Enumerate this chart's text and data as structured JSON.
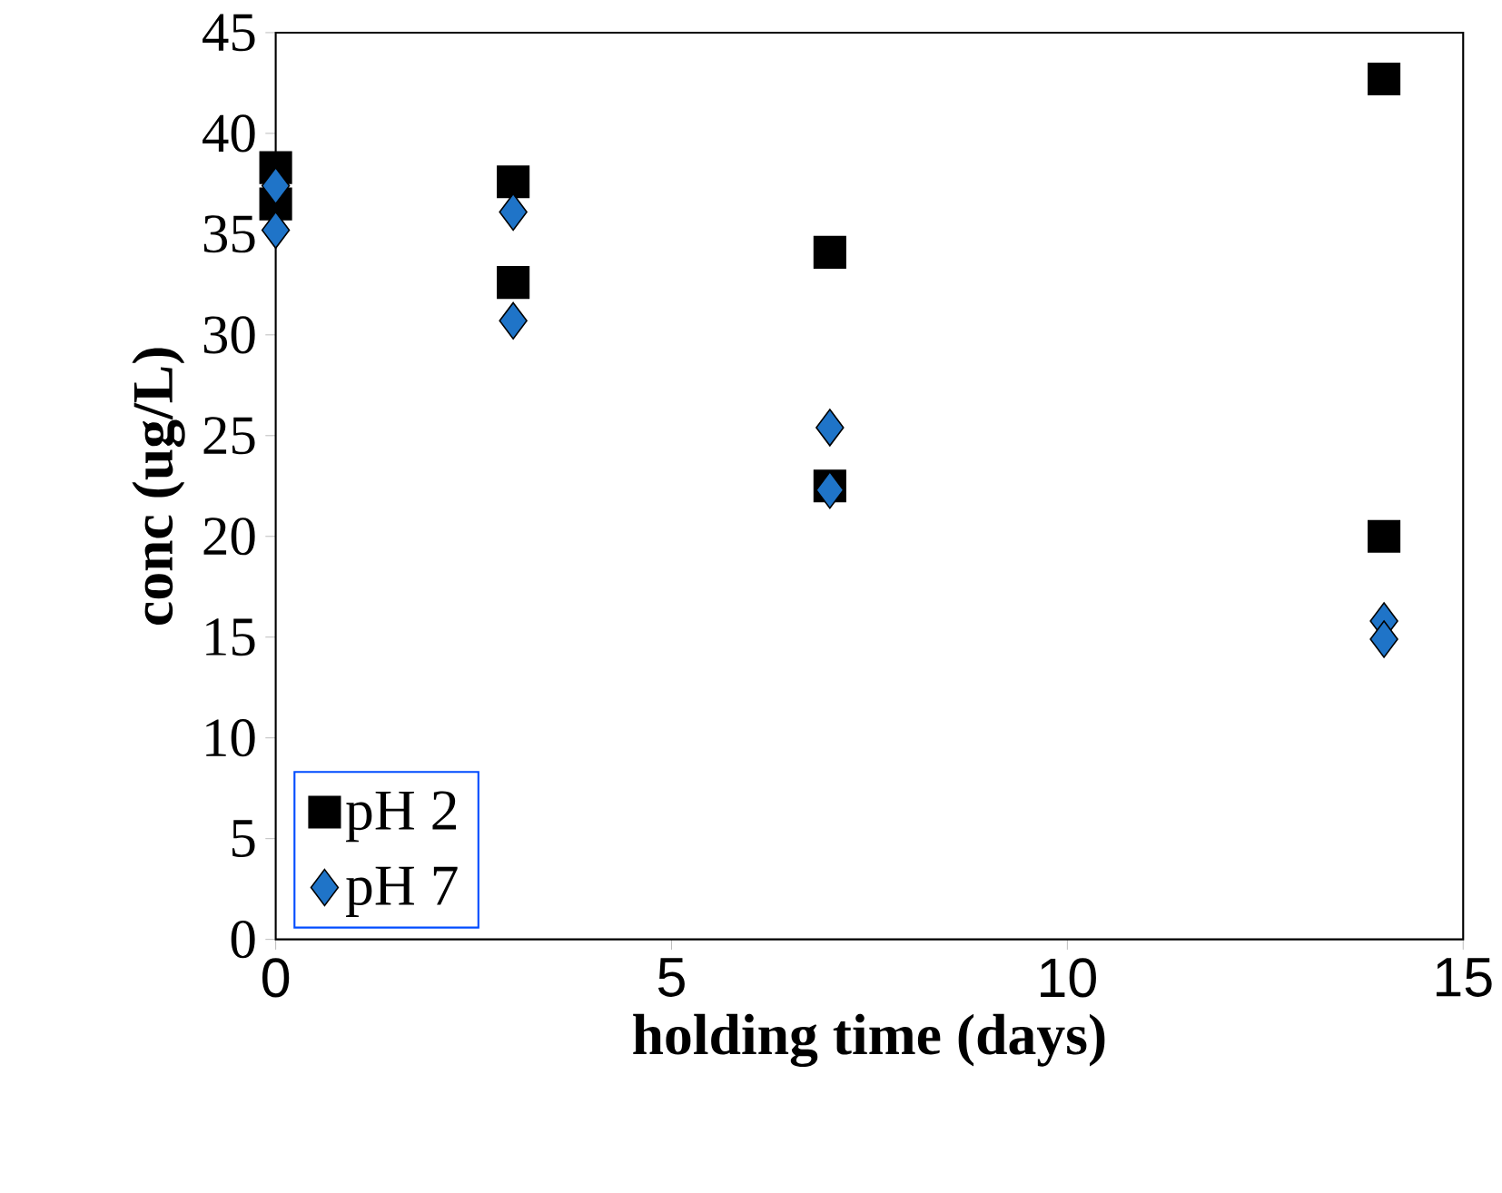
{
  "chart_data": {
    "type": "scatter",
    "xlabel": "holding time (days)",
    "ylabel": "conc (ug/L)",
    "series": [
      {
        "name": "pH 2",
        "color": "#000000",
        "marker": "square",
        "x": [
          0,
          0,
          3,
          3,
          7,
          7,
          14,
          14
        ],
        "values": [
          38.3,
          36.5,
          37.6,
          32.6,
          34.1,
          22.5,
          42.7,
          20.0
        ]
      },
      {
        "name": "pH 7",
        "color": "#1f74c8",
        "marker": "diamond",
        "x": [
          0,
          0,
          3,
          3,
          7,
          7,
          14,
          14
        ],
        "values": [
          37.4,
          35.2,
          36.1,
          30.7,
          25.4,
          22.3,
          15.8,
          14.9
        ]
      }
    ],
    "xlim": [
      0,
      15
    ],
    "ylim": [
      0,
      45
    ],
    "xticks": [
      0,
      5,
      10,
      15
    ],
    "yticks": [
      0,
      5,
      10,
      15,
      20,
      25,
      30,
      35,
      40,
      45
    ],
    "legend": "bottom left",
    "grid": false
  }
}
